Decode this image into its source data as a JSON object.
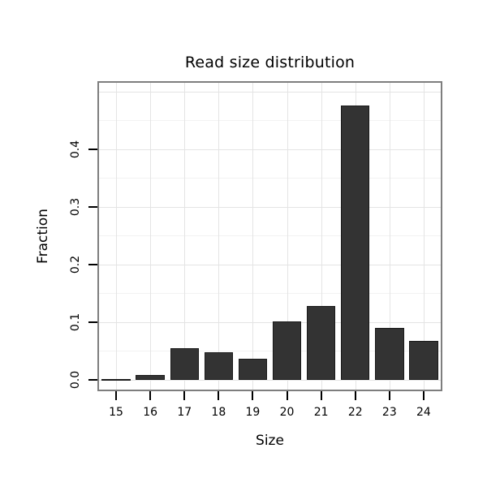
{
  "chart_data": {
    "type": "bar",
    "title": "Read size distribution",
    "xlabel": "Size",
    "ylabel": "Fraction",
    "categories": [
      "15",
      "16",
      "17",
      "18",
      "19",
      "20",
      "21",
      "22",
      "23",
      "24"
    ],
    "values": [
      0.002,
      0.008,
      0.055,
      0.048,
      0.037,
      0.102,
      0.128,
      0.475,
      0.09,
      0.068
    ],
    "ylim": [
      0,
      0.5
    ],
    "yticks": [
      0,
      0.1,
      0.2,
      0.3,
      0.4
    ],
    "ytick_labels": [
      "0.0",
      "0.1",
      "0.2",
      "0.3",
      "0.4"
    ],
    "grid": true,
    "legend": "none",
    "colors": {
      "bar_fill": "#333333",
      "bar_border": "#1a1a1a",
      "panel_border": "#7e7e7e",
      "grid_major": "#e4e4e4",
      "grid_minor": "#f2f2f2",
      "text": "#000000"
    }
  }
}
